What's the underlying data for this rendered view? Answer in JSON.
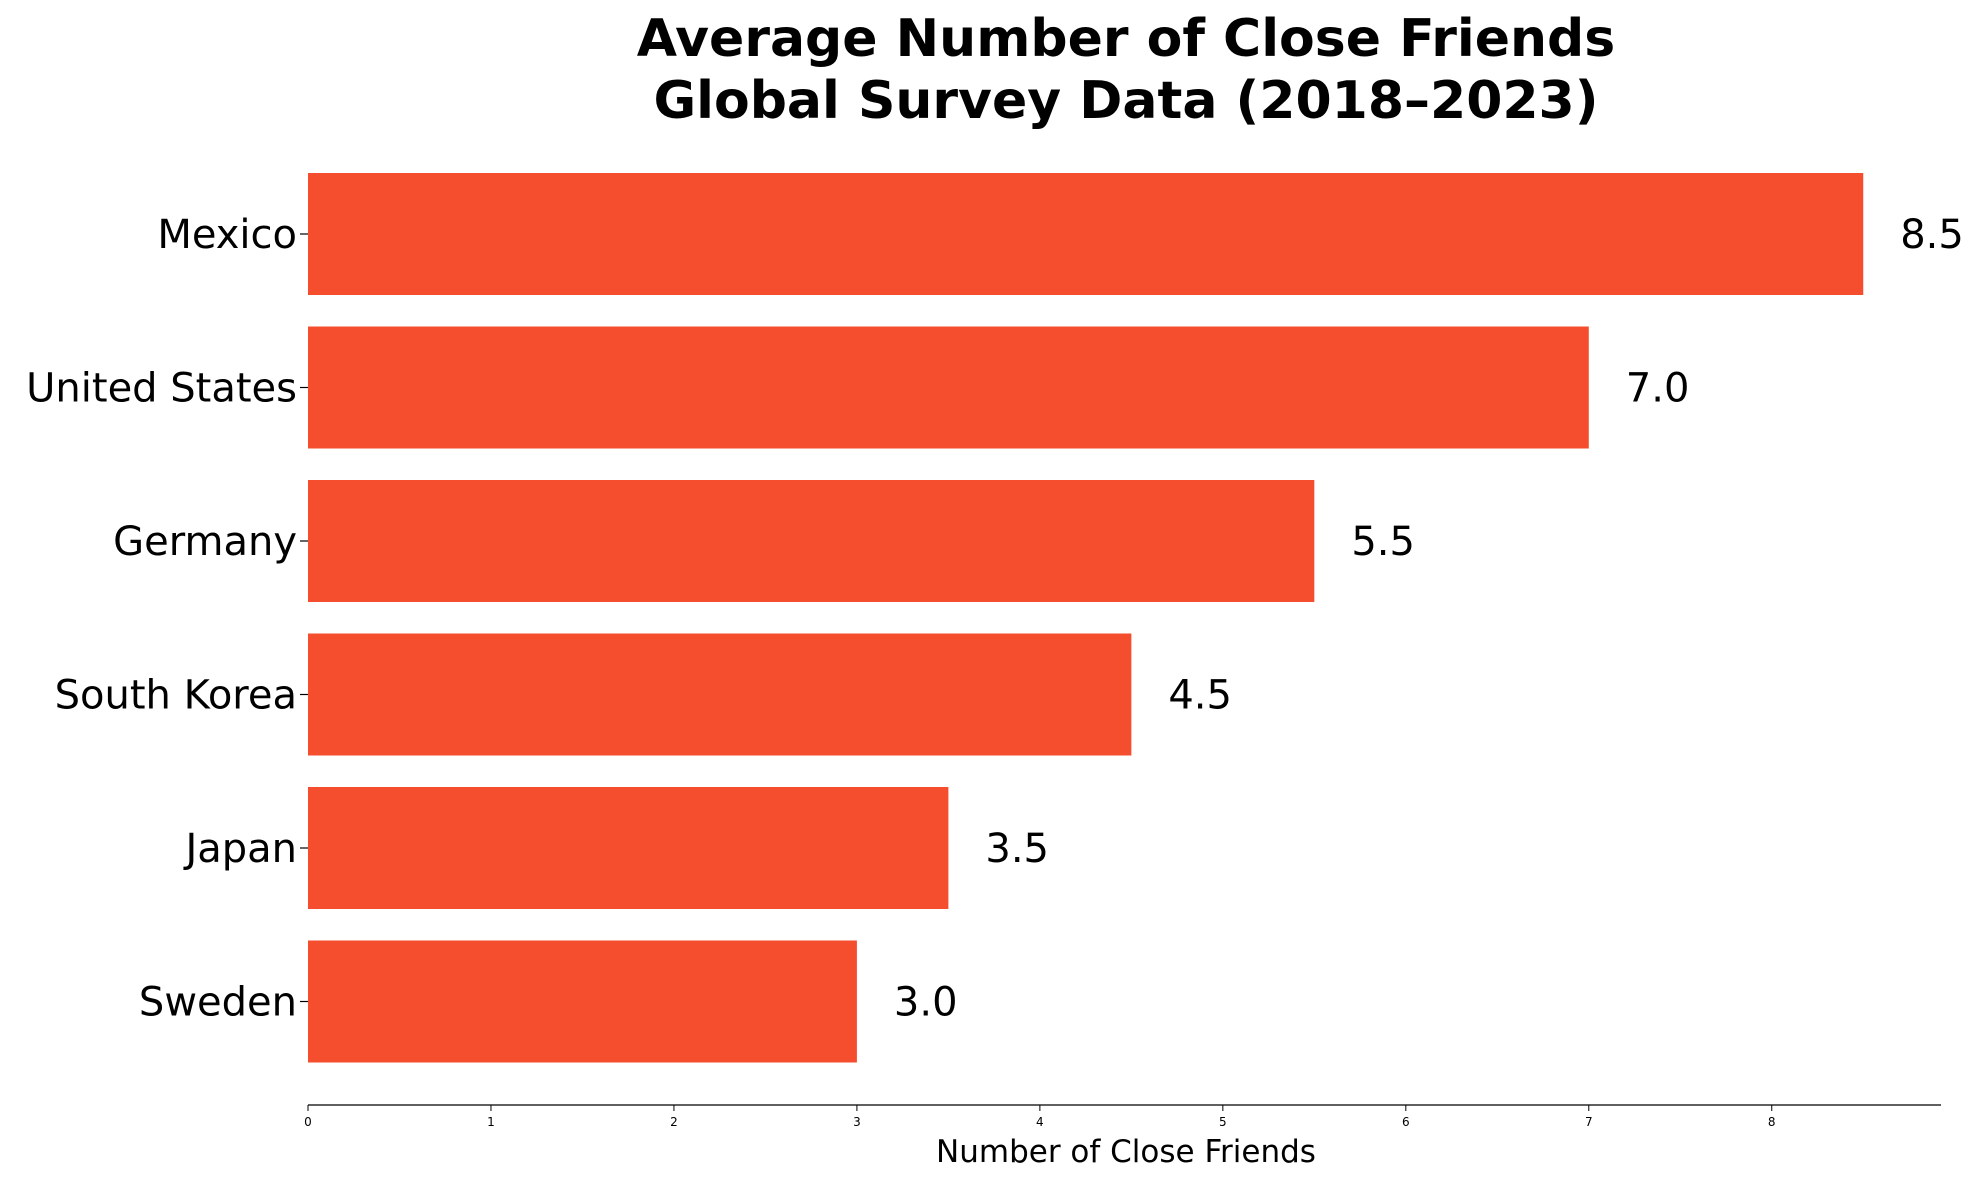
{
  "chart_data": {
    "type": "bar",
    "orientation": "horizontal",
    "title_lines": [
      "Average Number of Close Friends",
      "Global Survey Data (2018–2023)"
    ],
    "xlabel": "Number of Close Friends",
    "ylabel": "",
    "categories": [
      "Mexico",
      "United States",
      "Germany",
      "South Korea",
      "Japan",
      "Sweden"
    ],
    "values": [
      8.5,
      7.0,
      5.5,
      4.5,
      3.5,
      3.0
    ],
    "value_labels": [
      "8.5",
      "7.0",
      "5.5",
      "4.5",
      "3.5",
      "3.0"
    ],
    "xlim": [
      0,
      8.925
    ],
    "x_ticks": [
      0,
      1,
      2,
      3,
      4,
      5,
      6,
      7,
      8
    ],
    "x_tick_labels": [
      "0",
      "1",
      "2",
      "3",
      "4",
      "5",
      "6",
      "7",
      "8"
    ],
    "bar_color": "#F44E2E",
    "grid": false,
    "legend": "none"
  }
}
